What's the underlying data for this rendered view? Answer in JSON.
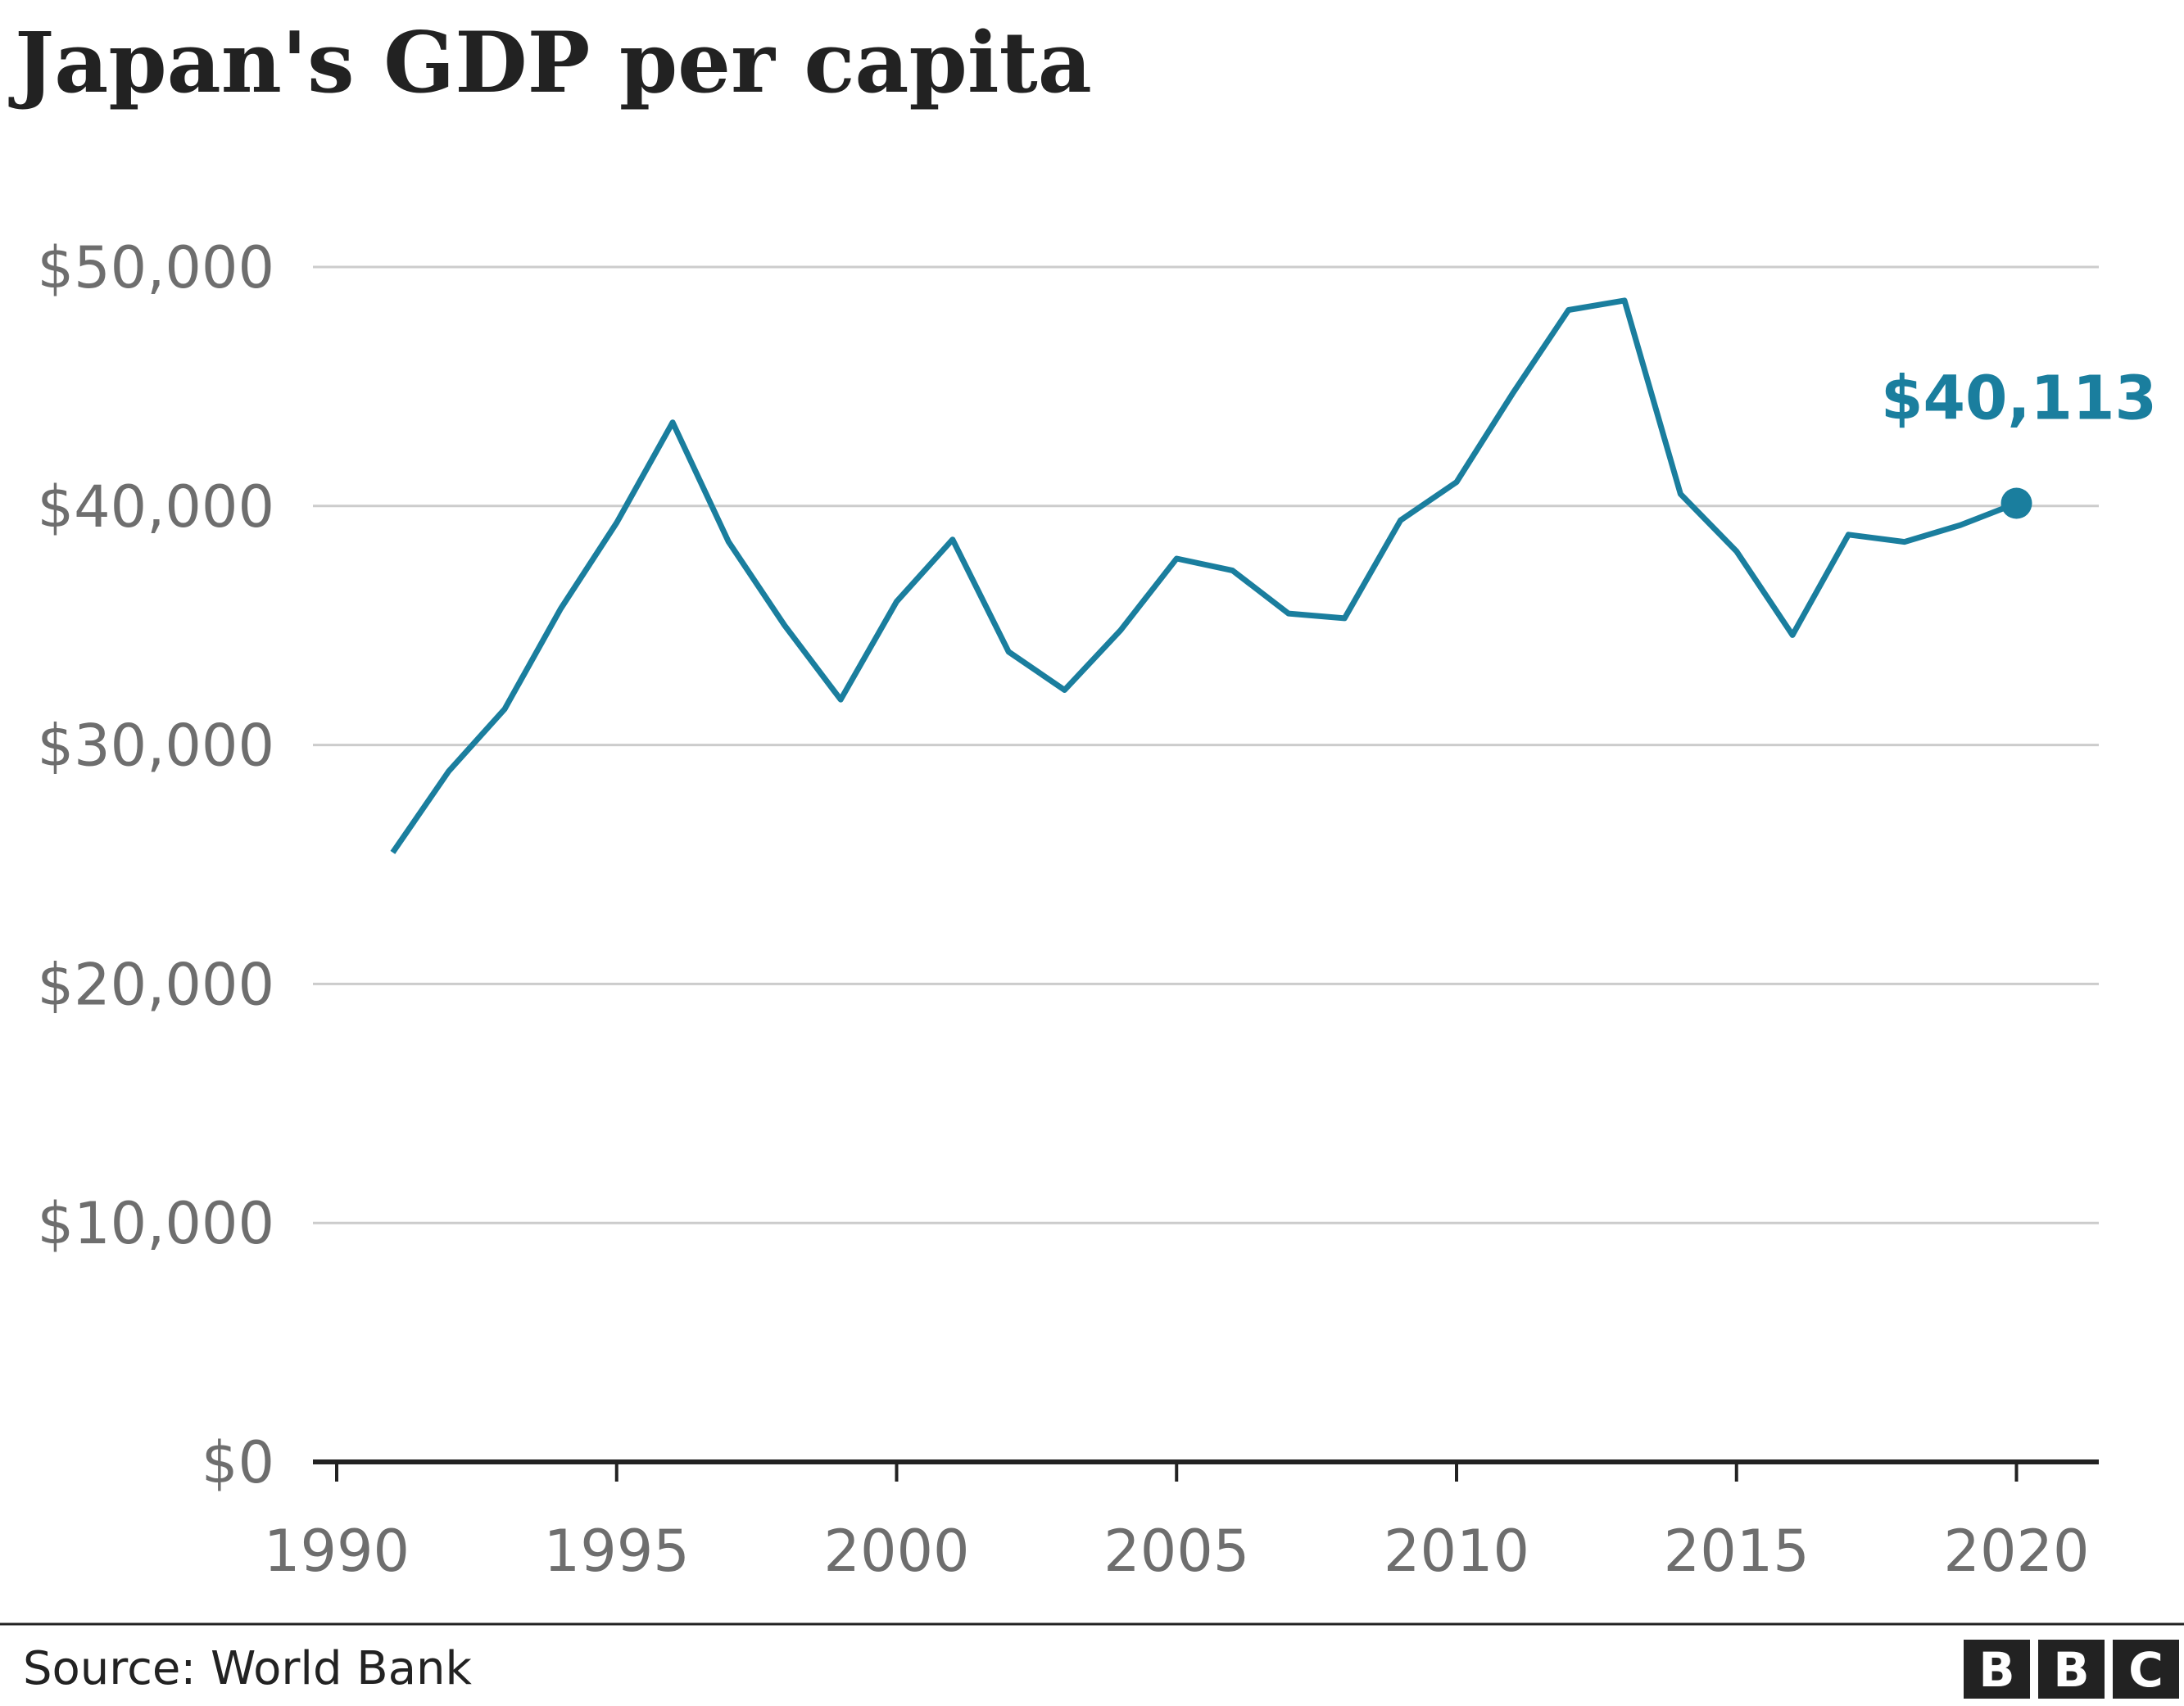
{
  "chart_data": {
    "type": "line",
    "title": "Japan's GDP per capita",
    "xlabel": "",
    "ylabel": "",
    "x": [
      1991,
      1992,
      1993,
      1994,
      1995,
      1996,
      1997,
      1998,
      1999,
      2000,
      2001,
      2002,
      2003,
      2004,
      2005,
      2006,
      2007,
      2008,
      2009,
      2010,
      2011,
      2012,
      2013,
      2014,
      2015,
      2016,
      2017,
      2018,
      2019,
      2020
    ],
    "series": [
      {
        "name": "GDP per capita",
        "values": [
          25500,
          28900,
          31500,
          35700,
          39300,
          43500,
          38500,
          35000,
          31900,
          36000,
          38600,
          33900,
          32300,
          34800,
          37800,
          37300,
          35500,
          35300,
          39400,
          41000,
          44700,
          48200,
          48600,
          40500,
          38100,
          34600,
          38800,
          38500,
          39200,
          40113
        ]
      }
    ],
    "xlim": [
      1990,
      2022
    ],
    "ylim": [
      0,
      50000
    ],
    "x_ticks": [
      1990,
      1995,
      2000,
      2005,
      2010,
      2015,
      2020
    ],
    "x_tick_labels": [
      "1990",
      "1995",
      "2000",
      "2005",
      "2010",
      "2015",
      "2020"
    ],
    "y_ticks": [
      0,
      10000,
      20000,
      30000,
      40000,
      50000
    ],
    "y_tick_labels": [
      "$0",
      "$10,000",
      "$20,000",
      "$30,000",
      "$40,000",
      "$50,000"
    ],
    "grid": true,
    "annotation": {
      "x": 2020,
      "y": 40113,
      "label": "$40,113"
    },
    "source": "Source: World Bank",
    "colors": {
      "line": "#1a7e9e",
      "grid": "#cccccc",
      "axis": "#222222",
      "tick_text": "#6e6e6e",
      "title": "#222222"
    },
    "logo": [
      "B",
      "B",
      "C"
    ]
  }
}
